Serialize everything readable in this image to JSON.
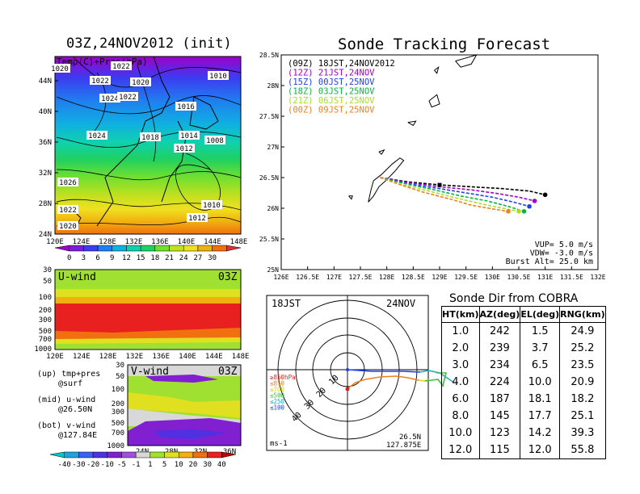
{
  "map_panel": {
    "title": "03Z,24NOV2012 (init)",
    "field_label": "Temp(C)+Pres(hPa)",
    "lat_ticks": [
      "44N",
      "40N",
      "36N",
      "32N",
      "28N",
      "24N"
    ],
    "lon_ticks": [
      "120E",
      "124E",
      "128E",
      "132E",
      "136E",
      "140E",
      "144E",
      "148E"
    ],
    "isobar_labels": [
      "1020",
      "1022",
      "1022",
      "1020",
      "1024",
      "1022",
      "1010",
      "1016",
      "1024",
      "1018",
      "1014",
      "1012",
      "1008",
      "1026",
      "1010",
      "1022",
      "1012",
      "1020"
    ],
    "colorbar_ticks": [
      "0",
      "3",
      "6",
      "9",
      "12",
      "15",
      "18",
      "21",
      "24",
      "27",
      "30"
    ],
    "colorbar_colors": [
      "#9e00c8",
      "#7a1fd6",
      "#3c3cf0",
      "#1f7ff0",
      "#10b0e0",
      "#10d0b0",
      "#20d060",
      "#70e030",
      "#c0e020",
      "#f0e020",
      "#f0b010",
      "#f07010",
      "#e03030"
    ]
  },
  "uwind_panel": {
    "label": "U-wind",
    "time": "03Z",
    "y_ticks": [
      "30",
      "50",
      "100",
      "200",
      "300",
      "500",
      "700",
      "1000"
    ],
    "x_ticks": [
      "120E",
      "124E",
      "128E",
      "132E",
      "136E",
      "140E",
      "144E",
      "148E"
    ]
  },
  "vwind_panel": {
    "label": "V-wind",
    "time": "03Z",
    "y_ticks": [
      "30",
      "50",
      "100",
      "200",
      "300",
      "500",
      "700",
      "1000"
    ],
    "x_ticks": [
      "24N",
      "28N",
      "32N",
      "36N"
    ]
  },
  "panel_notes": [
    {
      "line1": "(up) tmp+pres",
      "line2": "@surf"
    },
    {
      "line1": "(mid) u-wind",
      "line2": "@26.50N"
    },
    {
      "line1": "(bot) v-wind",
      "line2": "@127.84E"
    }
  ],
  "wind_colorbar": {
    "ticks": [
      "-40",
      "-30",
      "-20",
      "-10",
      "-5",
      "-1",
      "1",
      "5",
      "10",
      "20",
      "30",
      "40"
    ],
    "colors": [
      "#00c8c8",
      "#1fa0e0",
      "#3c60f0",
      "#5030e0",
      "#8020d0",
      "#a050e0",
      "#d8d8d8",
      "#a0e030",
      "#e0e020",
      "#f0b010",
      "#f07010",
      "#e82020",
      "#c00000"
    ]
  },
  "tracking": {
    "title": "Sonde Tracking Forecast",
    "legend": [
      {
        "text": "(09Z)  18JST,24NOV2012",
        "color": "#000000"
      },
      {
        "text": "(12Z)  21JST,24NOV",
        "color": "#a000c8"
      },
      {
        "text": "(15Z)  00JST,25NOV",
        "color": "#2040f0"
      },
      {
        "text": "(18Z)  03JST,25NOV",
        "color": "#10b040"
      },
      {
        "text": "(21Z)  06JST,25NOV",
        "color": "#a8e020"
      },
      {
        "text": "(00Z)  09JST,25NOV",
        "color": "#f08020"
      }
    ],
    "params": [
      "VUP=  5.0  m/s",
      "VDW= -3.0  m/s",
      "Burst Alt=  25.0  km"
    ]
  },
  "polar": {
    "time_left": "18JST",
    "date_right": "24NOV",
    "unit": "ms-1",
    "location_lat": "26.5N",
    "location_lon": "127.875E",
    "ring_labels": [
      "10",
      "20",
      "30",
      "40"
    ],
    "level_legend": [
      {
        "text": "≥850hPa",
        "color": "#e02020"
      },
      {
        "text": "≤850",
        "color": "#f08020"
      },
      {
        "text": "≤700",
        "color": "#e0d020"
      },
      {
        "text": "≤500",
        "color": "#40c040"
      },
      {
        "text": "≤250",
        "color": "#20b0c0"
      },
      {
        "text": "≤100",
        "color": "#2040f0"
      }
    ]
  },
  "sonde_dir": {
    "title": "Sonde Dir from COBRA",
    "headers": [
      "HT(km)",
      "AZ(deg)",
      "EL(deg)",
      "RNG(km)"
    ],
    "rows": [
      [
        "1.0",
        "242",
        "1.5",
        "24.9"
      ],
      [
        "2.0",
        "239",
        "3.7",
        "25.2"
      ],
      [
        "3.0",
        "234",
        "6.5",
        "23.5"
      ],
      [
        "4.0",
        "224",
        "10.0",
        "20.9"
      ],
      [
        "6.0",
        "187",
        "18.1",
        "18.2"
      ],
      [
        "8.0",
        "145",
        "17.7",
        "25.1"
      ],
      [
        "10.0",
        "123",
        "14.2",
        "39.3"
      ],
      [
        "12.0",
        "115",
        "12.0",
        "55.8"
      ]
    ]
  },
  "chart_data": {
    "type": "line",
    "x_unit": "degrees E",
    "y_unit": "degrees N",
    "x_ticks": [
      "126E",
      "126.5E",
      "127E",
      "127.5E",
      "128E",
      "128.5E",
      "129E",
      "129.5E",
      "130E",
      "130.5E",
      "131E",
      "131.5E",
      "132E"
    ],
    "y_ticks": [
      "25N",
      "25.5N",
      "26N",
      "26.5N",
      "27N",
      "27.5N",
      "28N",
      "28.5N"
    ],
    "xlim": [
      126,
      132
    ],
    "ylim": [
      25,
      28.5
    ],
    "launch_point": {
      "x": 127.875,
      "y": 26.5
    },
    "series": [
      {
        "name": "(09Z)  18JST,24NOV2012",
        "x": [
          127.875,
          128.4,
          129.0,
          129.6,
          130.2,
          130.7,
          131.0
        ],
        "y": [
          26.5,
          26.43,
          26.38,
          26.35,
          26.32,
          26.28,
          26.22
        ]
      },
      {
        "name": "(12Z)  21JST,24NOV",
        "x": [
          127.875,
          128.4,
          129.0,
          129.6,
          130.1,
          130.5,
          130.8
        ],
        "y": [
          26.5,
          26.42,
          26.35,
          26.3,
          26.24,
          26.18,
          26.12
        ]
      },
      {
        "name": "(15Z)  00JST,25NOV",
        "x": [
          127.875,
          128.4,
          129.0,
          129.5,
          130.0,
          130.4,
          130.7
        ],
        "y": [
          26.5,
          26.4,
          26.32,
          26.25,
          26.18,
          26.1,
          26.03
        ]
      },
      {
        "name": "(18Z)  03JST,25NOV",
        "x": [
          127.875,
          128.4,
          128.9,
          129.4,
          129.9,
          130.3,
          130.6
        ],
        "y": [
          26.5,
          26.39,
          26.3,
          26.2,
          26.12,
          26.03,
          25.95
        ]
      },
      {
        "name": "(21Z)  06JST,25NOV",
        "x": [
          127.875,
          128.3,
          128.8,
          129.3,
          129.8,
          130.2,
          130.5
        ],
        "y": [
          26.5,
          26.38,
          26.28,
          26.17,
          26.07,
          26.0,
          25.95
        ]
      },
      {
        "name": "(00Z)  09JST,25NOV",
        "x": [
          127.875,
          128.3,
          128.7,
          129.2,
          129.6,
          130.0,
          130.3
        ],
        "y": [
          26.5,
          26.37,
          26.26,
          26.15,
          26.05,
          25.99,
          25.95
        ]
      }
    ]
  }
}
